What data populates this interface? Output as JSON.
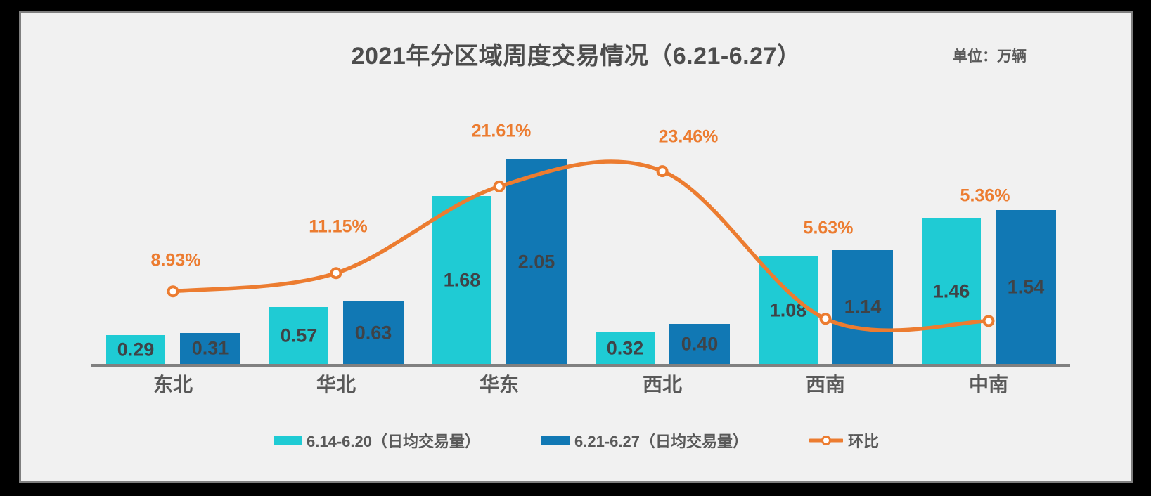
{
  "header": {
    "title": "2021年分区域周度交易情况（6.21-6.27）",
    "unit_label": "单位：万辆"
  },
  "legend": {
    "position": "bottom",
    "items": [
      {
        "label": "6.14-6.20（日均交易量）",
        "swatch": "bar",
        "color": "#1FCBD4"
      },
      {
        "label": "6.21-6.27（日均交易量）",
        "swatch": "bar",
        "color": "#1178B4"
      },
      {
        "label": "环比",
        "swatch": "line-marker",
        "color": "#EC7C30"
      }
    ]
  },
  "chart_data": {
    "type": "bar",
    "subtype": "grouped-bars-with-smooth-line-secondary-axis",
    "title": "2021年分区域周度交易情况（6.21-6.27）",
    "unit": "万辆",
    "categories": [
      "东北",
      "华北",
      "华东",
      "西北",
      "西南",
      "中南"
    ],
    "series": [
      {
        "name": "6.14-6.20（日均交易量）",
        "type": "bar",
        "axis": "primary",
        "color": "#1FCBD4",
        "values": [
          0.29,
          0.57,
          1.68,
          0.32,
          1.08,
          1.46
        ],
        "labels": [
          "0.29",
          "0.57",
          "1.68",
          "0.32",
          "1.08",
          "1.46"
        ]
      },
      {
        "name": "6.21-6.27（日均交易量）",
        "type": "bar",
        "axis": "primary",
        "color": "#1178B4",
        "values": [
          0.31,
          0.63,
          2.05,
          0.4,
          1.14,
          1.54
        ],
        "labels": [
          "0.31",
          "0.63",
          "2.05",
          "0.40",
          "1.14",
          "1.54"
        ]
      },
      {
        "name": "环比",
        "type": "line",
        "axis": "secondary",
        "smooth": true,
        "color": "#EC7C30",
        "marker": "circle-open",
        "values": [
          8.93,
          11.15,
          21.61,
          23.46,
          5.63,
          5.36
        ],
        "labels": [
          "8.93%",
          "11.15%",
          "21.61%",
          "23.46%",
          "5.63%",
          "5.36%"
        ],
        "label_offsets": [
          {
            "dx": 4,
            "dy": -44
          },
          {
            "dx": 3,
            "dy": -66
          },
          {
            "dx": 3,
            "dy": -78
          },
          {
            "dx": 37,
            "dy": -49
          },
          {
            "dx": 4,
            "dy": -129
          },
          {
            "dx": -5,
            "dy": -178
          }
        ]
      }
    ],
    "axes": {
      "x_axis_line": true,
      "gridlines": false,
      "value_axes_visible": false
    },
    "legend_position": "bottom"
  },
  "colors": {
    "background_frame": "#000000",
    "panel_bg": "#F1F1F1",
    "panel_border": "#7F7F7F",
    "axis_line": "#808080",
    "title_text": "#4D4D4D",
    "category_text": "#595959",
    "value_label_text": "#3F4347",
    "pct_label_text": "#EC7C30"
  }
}
